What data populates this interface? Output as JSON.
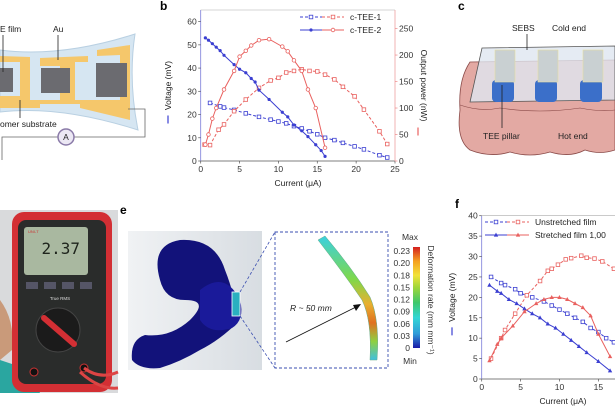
{
  "panels": {
    "a": {
      "labels": {
        "film": "E film",
        "au": "Au",
        "substrate": "omer substrate",
        "ammeter": "A"
      },
      "colors": {
        "substrate": "#d6e6f2",
        "gold": "#f5c76b",
        "film": "#6b6b70"
      }
    },
    "b": {
      "letter": "b"
    },
    "c": {
      "letter": "c",
      "labels": {
        "sebs": "SEBS",
        "cold": "Cold end",
        "pillar": "TEE pillar",
        "hot": "Hot end"
      },
      "colors": {
        "skin": "#e8b3ad",
        "pillar_bottom": "#3b6fc9",
        "pillar_top": "#c9d0d2"
      }
    },
    "d": {
      "meter_reading": "2.37",
      "meter_brand": "UNI-T",
      "meter_mode": "True RMS"
    },
    "e": {
      "letter": "e",
      "radius_label": "R ~ 50 mm",
      "colorbar": {
        "max_label": "Max",
        "min_label": "Min",
        "ticks": [
          "0.23",
          "0.20",
          "0.18",
          "0.15",
          "0.12",
          "0.09",
          "0.06",
          "0.03",
          "0"
        ],
        "title": "Deformation rate (mm mm⁻¹)",
        "colors": [
          "#1a1aa8",
          "#2f9bd8",
          "#33d6d6",
          "#3ec76a",
          "#9fd63a",
          "#f2e23a",
          "#f5a020",
          "#d41f1f"
        ]
      }
    },
    "f": {
      "letter": "f"
    }
  },
  "chart_data": [
    {
      "id": "b",
      "type": "line",
      "xlabel": "Current (μA)",
      "ylabel": "Voltage (mV)",
      "y2label": "Output power (nW)",
      "xlim": [
        0,
        25
      ],
      "ylim": [
        0,
        65
      ],
      "y2lim": [
        0,
        285
      ],
      "xticks": [
        "0",
        "5",
        "10",
        "15",
        "20",
        "25"
      ],
      "yticks": [
        "0",
        "10",
        "20",
        "30",
        "40",
        "50",
        "60"
      ],
      "y2ticks": [
        "0",
        "50",
        "100",
        "150",
        "200",
        "250"
      ],
      "legend_position": "top-right",
      "legend": [
        "c-TEE-1",
        "c-TEE-2"
      ],
      "colors": {
        "voltage": "#3b3fd1",
        "power": "#e9615f"
      },
      "series": [
        {
          "name": "c-TEE-1",
          "quantity": "voltage",
          "axis": "left",
          "style": "dashed",
          "marker": "open-square",
          "x": [
            1.2,
            2.5,
            3,
            4.3,
            5.8,
            7.5,
            9,
            10,
            11,
            12,
            13,
            14,
            15,
            16,
            17.2,
            18.3,
            19.8,
            21,
            23,
            24
          ],
          "y": [
            25,
            23.5,
            23,
            22,
            20.5,
            19,
            17.8,
            17,
            16.2,
            15,
            14,
            12.8,
            11.5,
            10,
            9,
            7.8,
            6.3,
            5,
            2.5,
            1.5
          ]
        },
        {
          "name": "c-TEE-1",
          "quantity": "power",
          "axis": "right",
          "style": "dashed",
          "marker": "open-square",
          "x": [
            0.5,
            1.2,
            2.3,
            3,
            4.3,
            5.8,
            7.5,
            9,
            10,
            11,
            12,
            13,
            14,
            15,
            16,
            17.2,
            18.3,
            19.8,
            21,
            23,
            24
          ],
          "y": [
            31,
            30,
            59,
            69,
            94,
            116,
            138,
            152,
            157,
            167,
            170,
            173,
            170,
            169,
            163,
            154,
            140,
            122,
            97,
            56,
            32
          ]
        },
        {
          "name": "c-TEE-2",
          "quantity": "voltage",
          "axis": "left",
          "style": "solid",
          "marker": "filled-circle",
          "x": [
            0.6,
            1,
            1.5,
            2,
            2.5,
            3,
            4.3,
            5,
            5.8,
            6.5,
            7,
            7.5,
            8.8,
            10.5,
            11.2,
            12,
            13,
            13.8,
            14.8,
            15.5,
            16
          ],
          "y": [
            53,
            52,
            50.5,
            49,
            47.5,
            45.5,
            41.5,
            39.5,
            38,
            35.5,
            34,
            30.5,
            26.5,
            21,
            19,
            15.5,
            13,
            10.5,
            7,
            4.5,
            2
          ]
        },
        {
          "name": "c-TEE-2",
          "quantity": "power",
          "axis": "right",
          "style": "solid",
          "marker": "open-circle",
          "x": [
            0.6,
            1,
            1.5,
            2,
            3,
            4.3,
            5,
            5.8,
            6.5,
            7.5,
            8.8,
            10.5,
            11.2,
            12,
            13,
            13.8,
            14.8,
            16
          ],
          "y": [
            31,
            50,
            80,
            100,
            135,
            170,
            197,
            208,
            218,
            228,
            230,
            216,
            207,
            190,
            170,
            135,
            100,
            25
          ]
        }
      ]
    },
    {
      "id": "f",
      "type": "line",
      "xlabel": "Current (μA)",
      "ylabel": "Voltage (mV)",
      "xlim": [
        0,
        17.2
      ],
      "ylim": [
        0,
        40
      ],
      "xticks": [
        "0",
        "5",
        "10",
        "15"
      ],
      "yticks": [
        "0",
        "5",
        "10",
        "15",
        "20",
        "25",
        "30",
        "35",
        "40"
      ],
      "legend_position": "top",
      "legend": [
        "Unstretched film",
        "Stretched film 1,00"
      ],
      "colors": {
        "voltage": "#3b3fd1",
        "power": "#e9615f"
      },
      "series": [
        {
          "name": "Unstretched film",
          "quantity": "voltage",
          "style": "dashed",
          "marker": "open-square",
          "x": [
            1.2,
            2.5,
            3,
            4.3,
            5,
            6.5,
            8,
            9,
            10,
            11,
            12,
            13,
            14,
            15,
            16,
            17
          ],
          "y": [
            25,
            23.5,
            23,
            22,
            21,
            20,
            19,
            18,
            17,
            16,
            15,
            14,
            12.5,
            11.5,
            10,
            9
          ]
        },
        {
          "name": "Unstretched film",
          "quantity": "power",
          "style": "dashed",
          "marker": "open-square",
          "x": [
            1.2,
            2.5,
            3,
            4.3,
            5.8,
            7.5,
            8.5,
            9,
            9.8,
            10.8,
            11.5,
            12.8,
            13.5,
            14.5,
            15.5,
            17
          ],
          "y": [
            5,
            10,
            12,
            16,
            20.5,
            24,
            26.5,
            27,
            28,
            29.3,
            29.6,
            30.2,
            29.7,
            29.5,
            28.8,
            27
          ]
        },
        {
          "name": "Stretched film 1,00",
          "quantity": "voltage",
          "style": "solid",
          "marker": "filled-triangle",
          "x": [
            1,
            2,
            2.5,
            3.5,
            4.5,
            5.5,
            6.5,
            7.5,
            8.5,
            9.5,
            10.5,
            11.5,
            12.5,
            13.5,
            15,
            16.5
          ],
          "y": [
            23,
            21.5,
            21,
            19.5,
            18.5,
            17.2,
            16,
            15,
            13.5,
            12.5,
            11,
            9.5,
            8,
            6.5,
            4.3,
            2
          ]
        },
        {
          "name": "Stretched film 1,00",
          "quantity": "power",
          "style": "solid",
          "marker": "filled-triangle",
          "x": [
            1,
            2,
            2.5,
            4,
            5.5,
            7,
            8,
            9,
            10,
            11,
            12,
            13,
            14,
            15,
            16.5
          ],
          "y": [
            4.5,
            8.5,
            10,
            13,
            16.5,
            18.5,
            19.5,
            20,
            20,
            19.5,
            18.5,
            17.5,
            15.5,
            11,
            5.5
          ]
        }
      ]
    }
  ]
}
